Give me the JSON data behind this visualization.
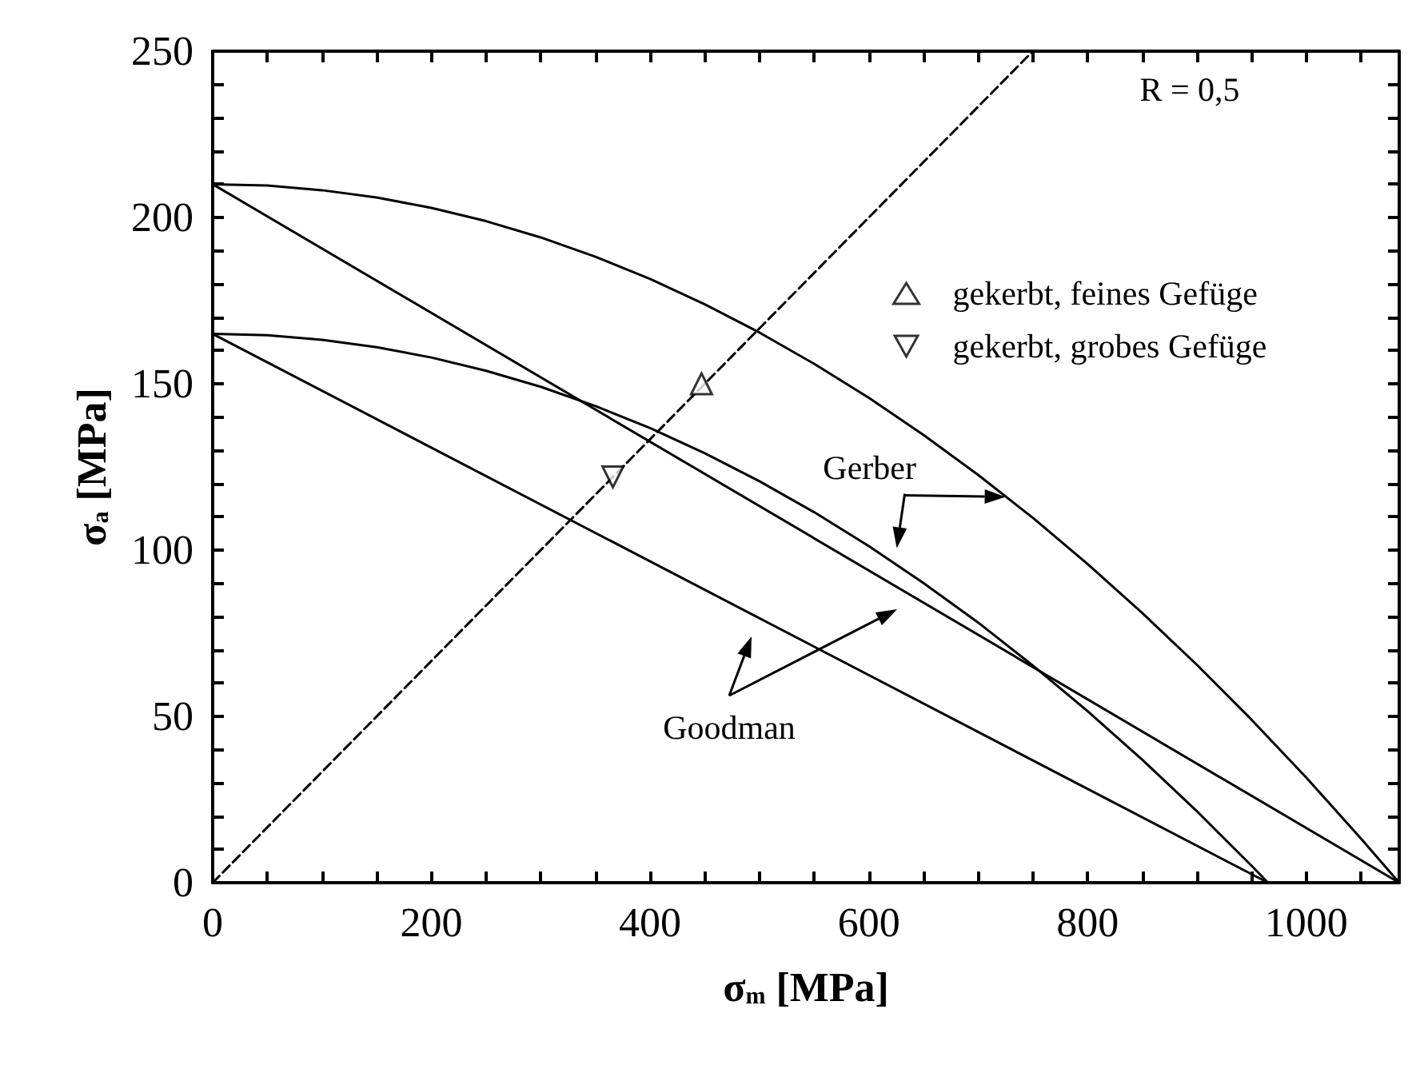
{
  "chart_data": {
    "type": "line",
    "xlabel": "σ$_{m}$ [MPa]",
    "ylabel": "σ$_{a}$ [MPa]",
    "xlim": [
      0,
      1085
    ],
    "ylim": [
      0,
      250
    ],
    "xticks": [
      0,
      200,
      400,
      600,
      800,
      1000
    ],
    "yticks": [
      0,
      50,
      100,
      150,
      200,
      250
    ],
    "grid": false,
    "legend": "top right",
    "marker": "none",
    "series": [
      {
        "color": "#000000",
        "x": [
          0,
          50,
          100,
          150,
          200,
          250,
          300,
          350,
          400,
          450,
          500,
          550,
          600,
          650,
          700,
          750,
          800,
          850,
          900,
          950,
          1000,
          1050,
          1085
        ],
        "values": [
          210,
          209.6,
          208.2,
          206.0,
          202.9,
          198.9,
          194.0,
          188.2,
          181.5,
          173.9,
          165.4,
          156.0,
          145.8,
          134.6,
          122.6,
          109.7,
          95.8,
          81.1,
          65.5,
          49.0,
          31.6,
          13.3,
          0
        ]
      },
      {
        "color": "#000000",
        "x": [
          0,
          50,
          100,
          150,
          200,
          250,
          300,
          350,
          400,
          450,
          500,
          550,
          600,
          650,
          700,
          750,
          800,
          850,
          900,
          950,
          965
        ],
        "values": [
          165,
          164.6,
          163.2,
          161.0,
          157.9,
          153.9,
          149.1,
          143.3,
          136.7,
          129.1,
          120.7,
          111.4,
          101.2,
          90.1,
          78.2,
          65.3,
          51.6,
          37.0,
          21.5,
          5.1,
          0
        ]
      },
      {
        "color": "#000000",
        "x": [
          0,
          1085
        ],
        "values": [
          210,
          0
        ]
      },
      {
        "color": "#000000",
        "x": [
          0,
          965
        ],
        "values": [
          165,
          0
        ]
      },
      {
        "color": "#000000",
        "line_style": "dashed",
        "x": [
          0,
          750
        ],
        "values": [
          0,
          250
        ]
      },
      {
        "type": "scatter",
        "name": "gekerbt, feines Gefüge",
        "color": "#000000",
        "marker": "triangle",
        "x": [
          447
        ],
        "values": [
          150
        ]
      },
      {
        "type": "scatter",
        "name": "gekerbt, grobes Gefüge",
        "color": "#000000",
        "marker": "triangle_down",
        "x": [
          366
        ],
        "values": [
          122
        ]
      }
    ],
    "annotations": [
      "R = 0,5",
      {
        "text": "Gerber",
        "x": 725,
        "y": 116
      },
      "Goodman"
    ]
  }
}
